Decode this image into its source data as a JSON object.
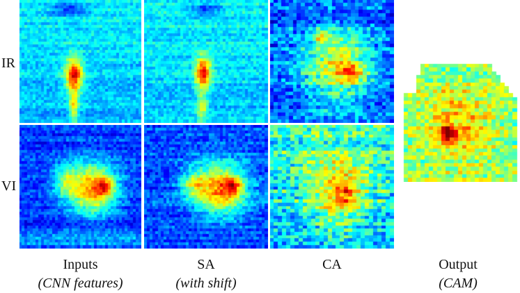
{
  "row_labels": {
    "ir": "IR",
    "vi": "VI"
  },
  "columns": [
    {
      "title": "Inputs",
      "open": "(",
      "note": "CNN features",
      "close": ")"
    },
    {
      "title": "SA",
      "open": "(",
      "note": "with shift",
      "close": ")"
    },
    {
      "title": "CA",
      "open": "",
      "note": "",
      "close": ""
    },
    {
      "title": "Output",
      "open": "(",
      "note": "CAM",
      "close": ")"
    }
  ],
  "colormap": "jet"
}
